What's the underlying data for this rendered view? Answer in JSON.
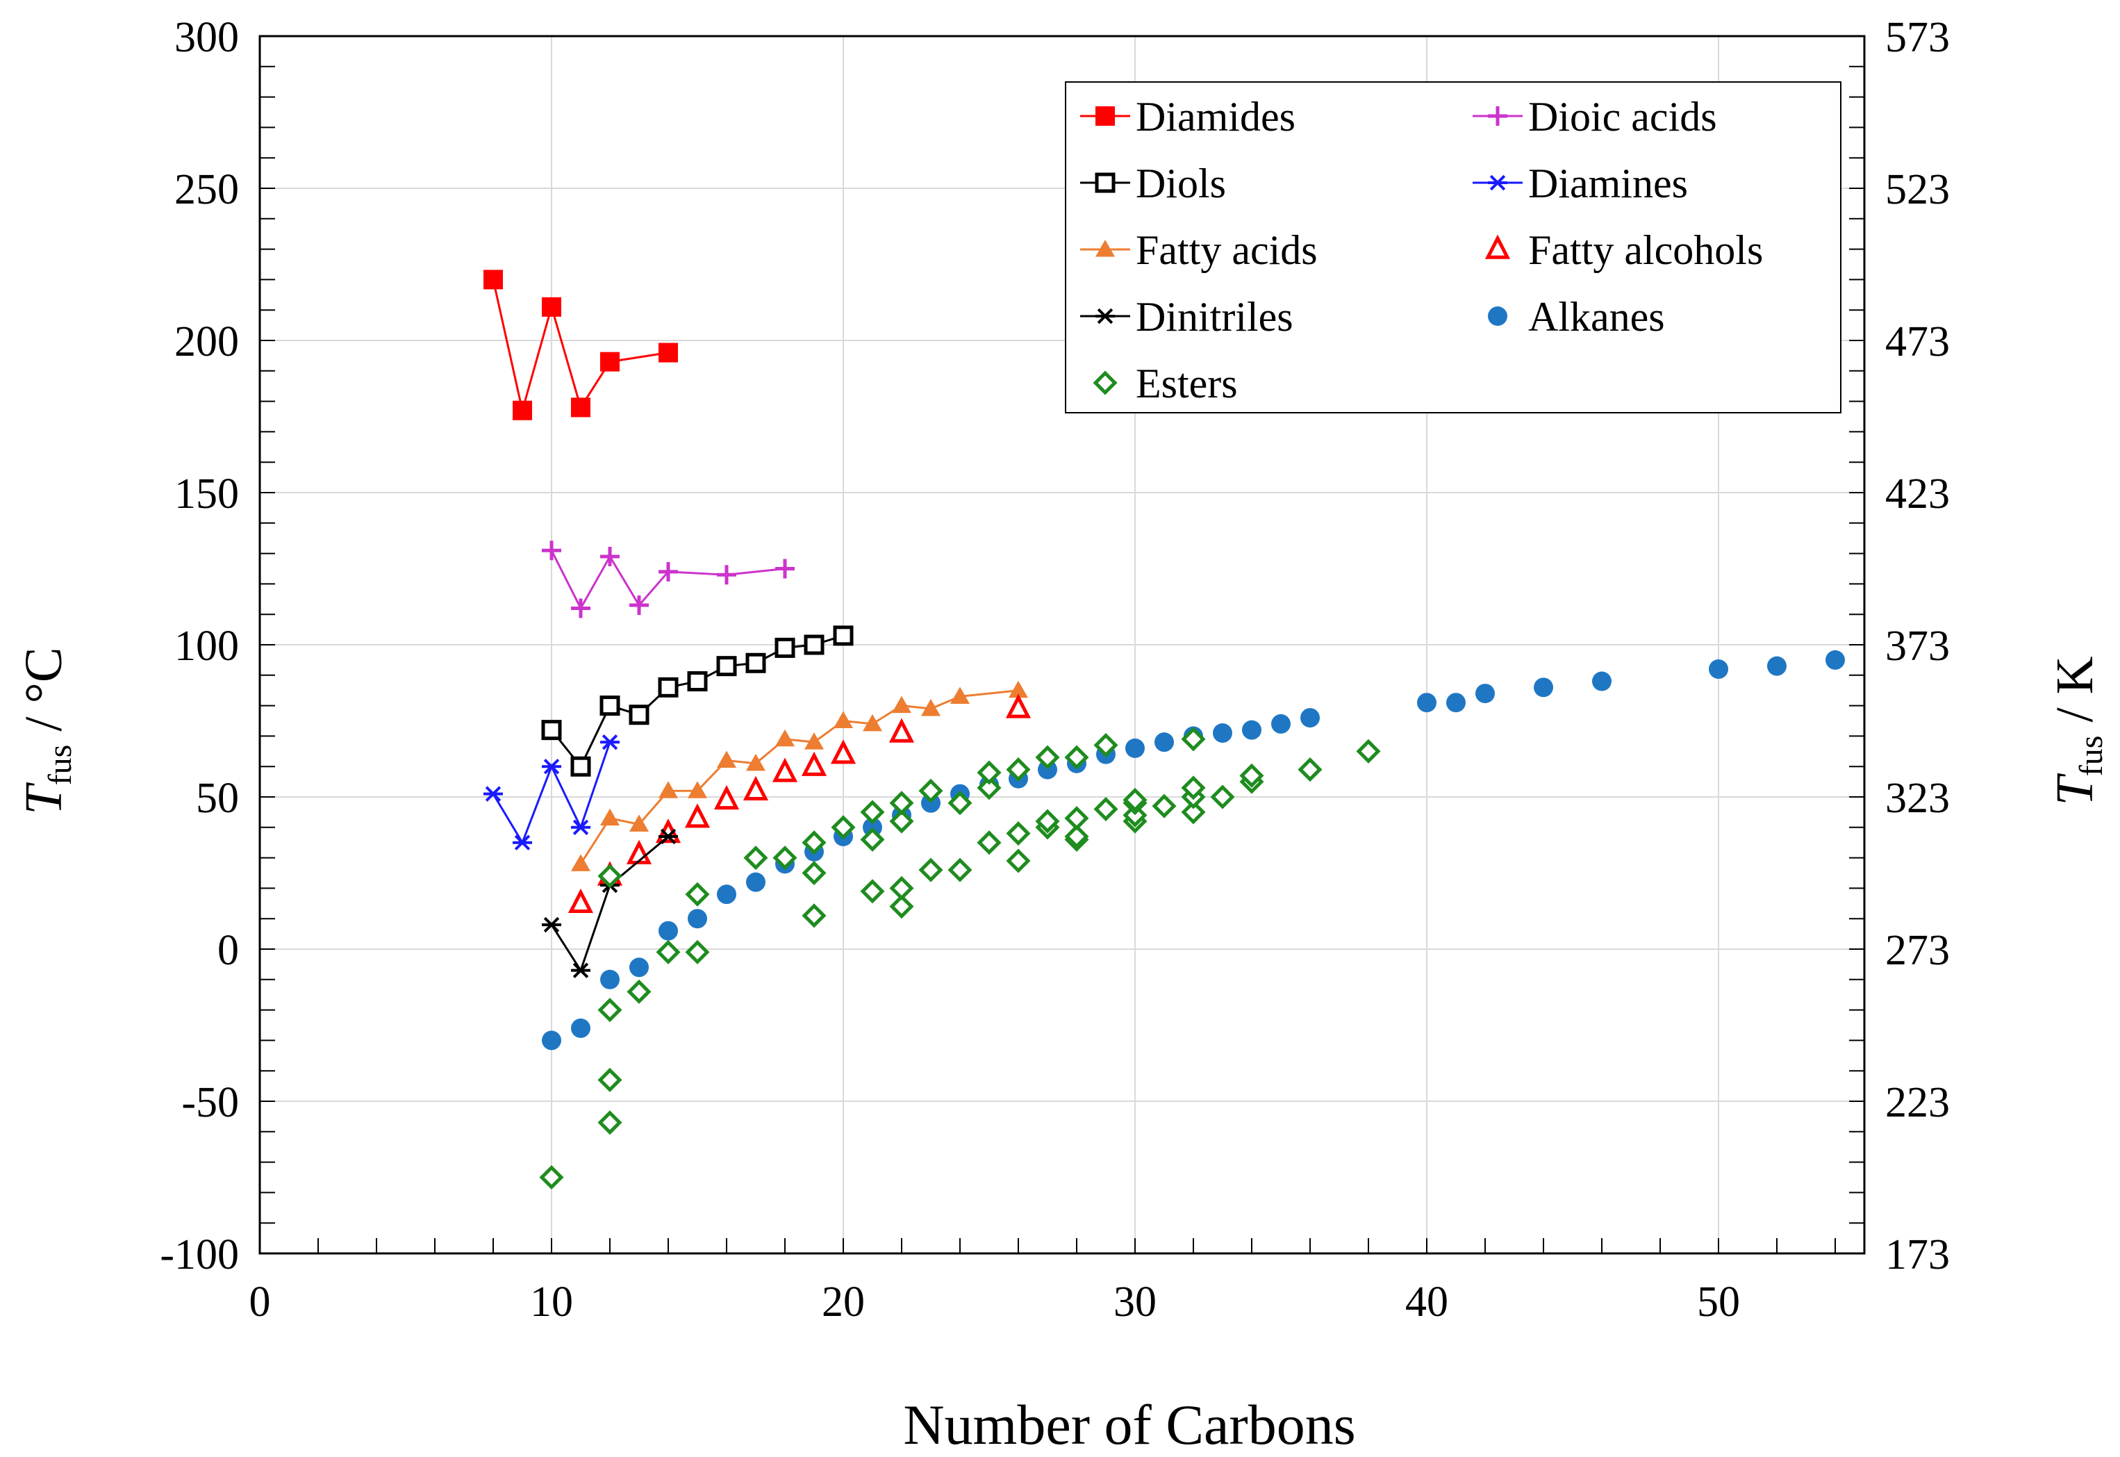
{
  "chart_data": {
    "type": "line",
    "xlabel": "Number of Carbons",
    "ylabel": {
      "main": "T",
      "sub": "fus",
      "unit": " / °C"
    },
    "y2label": {
      "main": "T",
      "sub": "fus",
      "unit": " / K"
    },
    "xlim": [
      0,
      55
    ],
    "ylim": [
      -100,
      300
    ],
    "xticks": [
      "0",
      "10",
      "20",
      "30",
      "40",
      "50"
    ],
    "xtick_values": [
      0,
      10,
      20,
      30,
      40,
      50
    ],
    "yticks": [
      "-100",
      "-50",
      "0",
      "50",
      "100",
      "150",
      "200",
      "250",
      "300"
    ],
    "ytick_values": [
      -100,
      -50,
      0,
      50,
      100,
      150,
      200,
      250,
      300
    ],
    "y2ticks": [
      "173",
      "223",
      "273",
      "323",
      "373",
      "423",
      "473",
      "523",
      "573"
    ],
    "grid": true,
    "legend_position": "top-right",
    "series": [
      {
        "name": "Diamides",
        "color": "#ff0000",
        "marker": "square-filled",
        "connected": true,
        "x": [
          8,
          9,
          10,
          11,
          12,
          14
        ],
        "y": [
          220,
          177,
          211,
          178,
          193,
          196
        ]
      },
      {
        "name": "Dioic acids",
        "color": "#cc33cc",
        "marker": "plus",
        "connected": true,
        "x": [
          10,
          11,
          12,
          13,
          14,
          16,
          18
        ],
        "y": [
          131,
          112,
          129,
          113,
          124,
          123,
          125
        ]
      },
      {
        "name": "Diols",
        "color": "#000000",
        "marker": "square-open",
        "connected": true,
        "x": [
          10,
          11,
          12,
          13,
          14,
          15,
          16,
          17,
          18,
          19,
          20
        ],
        "y": [
          72,
          60,
          80,
          77,
          86,
          88,
          93,
          94,
          99,
          100,
          103
        ]
      },
      {
        "name": "Diamines",
        "color": "#1a1aff",
        "marker": "asterisk",
        "connected": true,
        "x": [
          8,
          9,
          10,
          11,
          12
        ],
        "y": [
          51,
          35,
          60,
          40,
          68
        ]
      },
      {
        "name": "Fatty acids",
        "color": "#ed7d31",
        "marker": "triangle-filled",
        "connected": true,
        "x": [
          11,
          12,
          13,
          14,
          15,
          16,
          17,
          18,
          19,
          20,
          21,
          22,
          23,
          24,
          26
        ],
        "y": [
          28,
          43,
          41,
          52,
          52,
          62,
          61,
          69,
          68,
          75,
          74,
          80,
          79,
          83,
          85
        ]
      },
      {
        "name": "Fatty alcohols",
        "color": "#ff0000",
        "marker": "triangle-open",
        "connected": false,
        "x": [
          11,
          12,
          13,
          14,
          15,
          16,
          17,
          18,
          19,
          20,
          22,
          26
        ],
        "y": [
          15,
          24,
          31,
          38,
          43,
          49,
          52,
          58,
          60,
          64,
          71,
          79
        ]
      },
      {
        "name": "Dinitriles",
        "color": "#000000",
        "marker": "asterisk",
        "connected": true,
        "x": [
          10,
          11,
          12,
          14
        ],
        "y": [
          8,
          -7,
          21,
          37
        ]
      },
      {
        "name": "Alkanes",
        "color": "#1f77c4",
        "marker": "circle-filled",
        "connected": false,
        "x": [
          10,
          11,
          12,
          13,
          14,
          15,
          16,
          17,
          18,
          19,
          20,
          21,
          22,
          23,
          24,
          25,
          26,
          27,
          28,
          29,
          30,
          31,
          32,
          33,
          34,
          35,
          36,
          40,
          41,
          42,
          44,
          46,
          50,
          52,
          54
        ],
        "y": [
          -30,
          -26,
          -10,
          -6,
          6,
          10,
          18,
          22,
          28,
          32,
          37,
          40,
          44,
          48,
          51,
          54,
          56,
          59,
          61,
          64,
          66,
          68,
          70,
          71,
          72,
          74,
          76,
          81,
          81,
          84,
          86,
          88,
          92,
          93,
          95
        ]
      },
      {
        "name": "Esters",
        "color": "#1e8c1e",
        "marker": "diamond-open",
        "connected": false,
        "x": [
          10,
          12,
          12,
          12,
          12,
          13,
          14,
          15,
          15,
          17,
          18,
          19,
          19,
          19,
          20,
          21,
          21,
          21,
          22,
          22,
          22,
          22,
          23,
          23,
          24,
          24,
          25,
          25,
          25,
          26,
          26,
          26,
          27,
          27,
          27,
          28,
          28,
          28,
          28,
          29,
          29,
          30,
          30,
          30,
          30,
          31,
          32,
          32,
          32,
          32,
          33,
          34,
          34,
          36,
          38
        ],
        "y": [
          -75,
          -57,
          -43,
          -20,
          24,
          -14,
          -1,
          -1,
          18,
          30,
          30,
          11,
          25,
          35,
          40,
          19,
          36,
          45,
          14,
          20,
          42,
          48,
          26,
          52,
          26,
          48,
          35,
          53,
          58,
          29,
          38,
          59,
          40,
          42,
          63,
          36,
          37,
          43,
          63,
          46,
          67,
          42,
          44,
          48,
          49,
          47,
          45,
          50,
          53,
          69,
          50,
          55,
          57,
          59,
          65
        ]
      }
    ]
  }
}
